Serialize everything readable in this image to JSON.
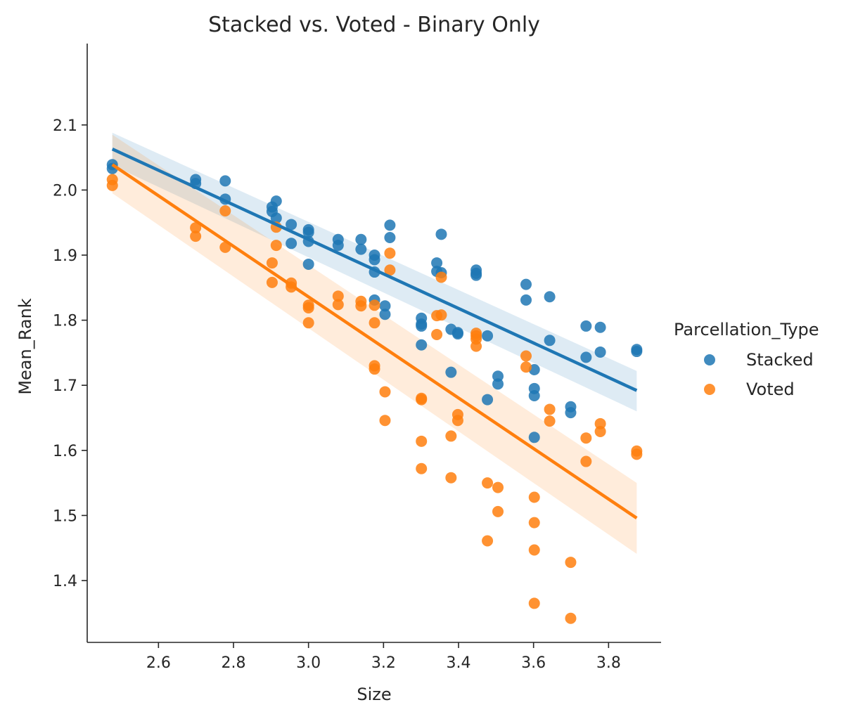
{
  "chart_data": {
    "type": "scatter",
    "title": "Stacked vs. Voted - Binary Only",
    "xlabel": "Size",
    "ylabel": "Mean_Rank",
    "xlim": [
      2.41,
      3.94
    ],
    "ylim": [
      1.305,
      2.225
    ],
    "xticks": [
      2.6,
      2.8,
      3.0,
      3.2,
      3.4,
      3.6,
      3.8
    ],
    "xtick_labels": [
      "2.6",
      "2.8",
      "3.0",
      "3.2",
      "3.4",
      "3.6",
      "3.8"
    ],
    "yticks": [
      1.4,
      1.5,
      1.6,
      1.7,
      1.8,
      1.9,
      2.0,
      2.1
    ],
    "ytick_labels": [
      "1.4",
      "1.5",
      "1.6",
      "1.7",
      "1.8",
      "1.9",
      "2.0",
      "2.1"
    ],
    "grid": false,
    "legend": {
      "title": "Parcellation_Type",
      "placement": "right"
    },
    "series": [
      {
        "name": "Stacked",
        "color": "#1f77b4",
        "regression": {
          "x": [
            2.477,
            3.875
          ],
          "y": [
            2.063,
            1.692
          ]
        },
        "ci": {
          "x": [
            2.477,
            3.875
          ],
          "upper": [
            2.088,
            1.722
          ],
          "lower": [
            2.038,
            1.66
          ]
        },
        "x": [
          2.477,
          2.477,
          2.699,
          2.699,
          2.778,
          2.778,
          2.903,
          2.903,
          2.914,
          2.914,
          2.954,
          2.954,
          3.0,
          3.0,
          3.0,
          3.0,
          3.079,
          3.079,
          3.14,
          3.14,
          3.176,
          3.176,
          3.176,
          3.176,
          3.204,
          3.204,
          3.217,
          3.217,
          3.301,
          3.301,
          3.301,
          3.301,
          3.342,
          3.342,
          3.354,
          3.354,
          3.38,
          3.38,
          3.398,
          3.398,
          3.447,
          3.447,
          3.447,
          3.477,
          3.477,
          3.505,
          3.505,
          3.58,
          3.58,
          3.602,
          3.602,
          3.602,
          3.602,
          3.643,
          3.643,
          3.699,
          3.699,
          3.74,
          3.74,
          3.778,
          3.778,
          3.875,
          3.875
        ],
        "y": [
          2.039,
          2.033,
          2.016,
          2.01,
          2.014,
          1.986,
          1.974,
          1.967,
          1.983,
          1.957,
          1.947,
          1.918,
          1.939,
          1.935,
          1.921,
          1.886,
          1.924,
          1.915,
          1.924,
          1.909,
          1.9,
          1.893,
          1.874,
          1.831,
          1.822,
          1.809,
          1.946,
          1.927,
          1.803,
          1.794,
          1.791,
          1.762,
          1.888,
          1.875,
          1.932,
          1.873,
          1.786,
          1.72,
          1.781,
          1.779,
          1.877,
          1.872,
          1.869,
          1.776,
          1.678,
          1.714,
          1.702,
          1.855,
          1.831,
          1.724,
          1.695,
          1.684,
          1.62,
          1.836,
          1.769,
          1.667,
          1.658,
          1.791,
          1.743,
          1.789,
          1.751,
          1.755,
          1.752
        ]
      },
      {
        "name": "Voted",
        "color": "#ff7f0e",
        "regression": {
          "x": [
            2.477,
            3.875
          ],
          "y": [
            2.039,
            1.496
          ]
        },
        "ci": {
          "x": [
            2.477,
            3.875
          ],
          "upper": [
            2.085,
            1.55
          ],
          "lower": [
            1.995,
            1.441
          ]
        },
        "x": [
          2.477,
          2.477,
          2.699,
          2.699,
          2.778,
          2.778,
          2.903,
          2.903,
          2.914,
          2.914,
          2.954,
          2.954,
          3.0,
          3.0,
          3.0,
          3.079,
          3.079,
          3.14,
          3.14,
          3.176,
          3.176,
          3.176,
          3.176,
          3.204,
          3.204,
          3.217,
          3.217,
          3.301,
          3.301,
          3.301,
          3.301,
          3.342,
          3.342,
          3.354,
          3.354,
          3.38,
          3.38,
          3.398,
          3.398,
          3.447,
          3.447,
          3.447,
          3.447,
          3.477,
          3.477,
          3.505,
          3.505,
          3.58,
          3.58,
          3.602,
          3.602,
          3.602,
          3.602,
          3.643,
          3.643,
          3.699,
          3.699,
          3.74,
          3.74,
          3.778,
          3.778,
          3.875,
          3.875
        ],
        "y": [
          2.016,
          2.007,
          1.942,
          1.929,
          1.968,
          1.912,
          1.888,
          1.858,
          1.943,
          1.915,
          1.857,
          1.851,
          1.823,
          1.819,
          1.796,
          1.837,
          1.824,
          1.829,
          1.822,
          1.823,
          1.796,
          1.73,
          1.725,
          1.69,
          1.646,
          1.903,
          1.877,
          1.68,
          1.678,
          1.614,
          1.572,
          1.807,
          1.778,
          1.866,
          1.808,
          1.622,
          1.558,
          1.655,
          1.646,
          1.78,
          1.776,
          1.771,
          1.76,
          1.55,
          1.461,
          1.543,
          1.506,
          1.745,
          1.728,
          1.528,
          1.489,
          1.447,
          1.365,
          1.663,
          1.645,
          1.428,
          1.342,
          1.619,
          1.583,
          1.641,
          1.629,
          1.599,
          1.594
        ]
      }
    ]
  }
}
